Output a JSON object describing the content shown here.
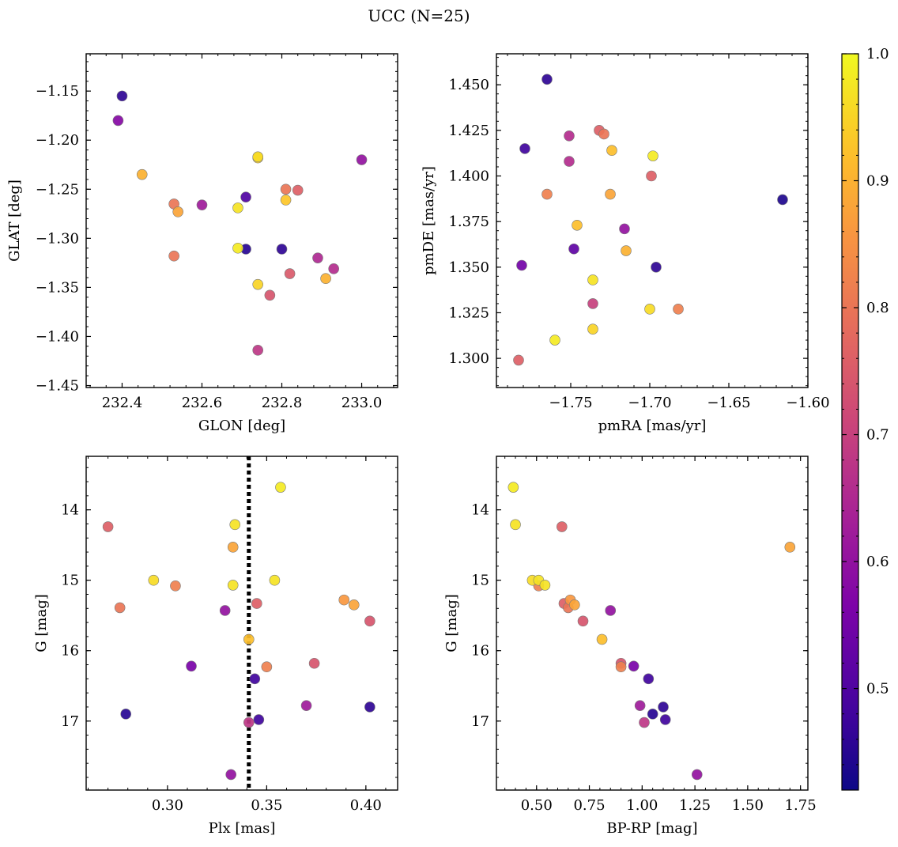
{
  "title": "UCC (N=25)",
  "colorbar": {
    "colormap": "plasma",
    "range": [
      0.42,
      1.0
    ],
    "ticks": [
      "0.5",
      "0.6",
      "0.7",
      "0.8",
      "0.9",
      "1.0"
    ],
    "tick_values": [
      0.5,
      0.6,
      0.7,
      0.8,
      0.9,
      1.0
    ]
  },
  "chart_data": [
    {
      "type": "scatter",
      "xlabel": "GLON [deg]",
      "ylabel": "GLAT [deg]",
      "xlim": [
        232.31,
        233.09
      ],
      "ylim": [
        -1.452,
        -1.112
      ],
      "xticks": [
        232.4,
        232.6,
        232.8,
        233.0
      ],
      "xticklabels": [
        "232.4",
        "232.6",
        "232.8",
        "233.0"
      ],
      "yticks": [
        -1.15,
        -1.2,
        -1.25,
        -1.3,
        -1.35,
        -1.4,
        -1.45
      ],
      "yticklabels": [
        "−1.15",
        "−1.20",
        "−1.25",
        "−1.30",
        "−1.35",
        "−1.40",
        "−1.45"
      ],
      "points": [
        {
          "x": 232.4,
          "y": -1.155,
          "c": 0.46
        },
        {
          "x": 232.39,
          "y": -1.18,
          "c": 0.58
        },
        {
          "x": 232.45,
          "y": -1.235,
          "c": 0.9
        },
        {
          "x": 232.53,
          "y": -1.265,
          "c": 0.8
        },
        {
          "x": 232.54,
          "y": -1.273,
          "c": 0.88
        },
        {
          "x": 232.53,
          "y": -1.318,
          "c": 0.8
        },
        {
          "x": 232.6,
          "y": -1.266,
          "c": 0.62
        },
        {
          "x": 232.69,
          "y": -1.269,
          "c": 0.97
        },
        {
          "x": 232.69,
          "y": -1.31,
          "c": 0.98
        },
        {
          "x": 232.71,
          "y": -1.258,
          "c": 0.5
        },
        {
          "x": 232.71,
          "y": -1.311,
          "c": 0.45
        },
        {
          "x": 232.74,
          "y": -1.217,
          "c": 0.96
        },
        {
          "x": 232.74,
          "y": -1.218,
          "c": 0.94
        },
        {
          "x": 232.74,
          "y": -1.347,
          "c": 0.95
        },
        {
          "x": 232.74,
          "y": -1.414,
          "c": 0.68
        },
        {
          "x": 232.77,
          "y": -1.358,
          "c": 0.74
        },
        {
          "x": 232.8,
          "y": -1.311,
          "c": 0.46
        },
        {
          "x": 232.81,
          "y": -1.25,
          "c": 0.8
        },
        {
          "x": 232.81,
          "y": -1.261,
          "c": 0.93
        },
        {
          "x": 232.82,
          "y": -1.336,
          "c": 0.75
        },
        {
          "x": 232.84,
          "y": -1.251,
          "c": 0.76
        },
        {
          "x": 232.89,
          "y": -1.32,
          "c": 0.65
        },
        {
          "x": 232.91,
          "y": -1.341,
          "c": 0.9
        },
        {
          "x": 232.93,
          "y": -1.331,
          "c": 0.66
        },
        {
          "x": 233.0,
          "y": -1.22,
          "c": 0.6
        }
      ]
    },
    {
      "type": "scatter",
      "xlabel": "pmRA [mas/yr]",
      "ylabel": "pmDE [mas/yr]",
      "xlim": [
        -1.797,
        -1.6
      ],
      "ylim": [
        1.284,
        1.467
      ],
      "xticks": [
        -1.75,
        -1.7,
        -1.65,
        -1.6
      ],
      "xticklabels": [
        "−1.75",
        "−1.70",
        "−1.65",
        "−1.60"
      ],
      "yticks": [
        1.3,
        1.325,
        1.35,
        1.375,
        1.4,
        1.425,
        1.45
      ],
      "yticklabels": [
        "1.300",
        "1.325",
        "1.350",
        "1.375",
        "1.400",
        "1.425",
        "1.450"
      ],
      "points": [
        {
          "x": -1.765,
          "y": 1.453,
          "c": 0.46
        },
        {
          "x": -1.779,
          "y": 1.415,
          "c": 0.48
        },
        {
          "x": -1.781,
          "y": 1.351,
          "c": 0.55
        },
        {
          "x": -1.783,
          "y": 1.299,
          "c": 0.76
        },
        {
          "x": -1.765,
          "y": 1.39,
          "c": 0.82
        },
        {
          "x": -1.76,
          "y": 1.31,
          "c": 0.98
        },
        {
          "x": -1.751,
          "y": 1.422,
          "c": 0.66
        },
        {
          "x": -1.751,
          "y": 1.408,
          "c": 0.66
        },
        {
          "x": -1.748,
          "y": 1.36,
          "c": 0.52
        },
        {
          "x": -1.746,
          "y": 1.373,
          "c": 0.92
        },
        {
          "x": -1.736,
          "y": 1.343,
          "c": 0.97
        },
        {
          "x": -1.736,
          "y": 1.33,
          "c": 0.7
        },
        {
          "x": -1.736,
          "y": 1.316,
          "c": 0.95
        },
        {
          "x": -1.732,
          "y": 1.425,
          "c": 0.76
        },
        {
          "x": -1.729,
          "y": 1.423,
          "c": 0.8
        },
        {
          "x": -1.724,
          "y": 1.414,
          "c": 0.92
        },
        {
          "x": -1.725,
          "y": 1.39,
          "c": 0.88
        },
        {
          "x": -1.716,
          "y": 1.371,
          "c": 0.6
        },
        {
          "x": -1.715,
          "y": 1.359,
          "c": 0.9
        },
        {
          "x": -1.698,
          "y": 1.411,
          "c": 0.98
        },
        {
          "x": -1.699,
          "y": 1.4,
          "c": 0.76
        },
        {
          "x": -1.696,
          "y": 1.35,
          "c": 0.46
        },
        {
          "x": -1.7,
          "y": 1.327,
          "c": 0.96
        },
        {
          "x": -1.682,
          "y": 1.327,
          "c": 0.82
        },
        {
          "x": -1.616,
          "y": 1.387,
          "c": 0.44
        }
      ]
    },
    {
      "type": "scatter",
      "xlabel": "Plx [mas]",
      "ylabel": "G [mag]",
      "xlim": [
        0.259,
        0.416
      ],
      "ylim": [
        17.98,
        13.24
      ],
      "xticks": [
        0.3,
        0.35,
        0.4
      ],
      "xticklabels": [
        "0.30",
        "0.35",
        "0.40"
      ],
      "yticks": [
        14,
        15,
        16,
        17
      ],
      "yticklabels": [
        "14",
        "15",
        "16",
        "17"
      ],
      "vline": 0.341,
      "points": [
        {
          "x": 0.357,
          "y": 13.68,
          "c": 0.98
        },
        {
          "x": 0.27,
          "y": 14.24,
          "c": 0.76
        },
        {
          "x": 0.334,
          "y": 14.21,
          "c": 0.97
        },
        {
          "x": 0.333,
          "y": 14.53,
          "c": 0.88
        },
        {
          "x": 0.293,
          "y": 15.0,
          "c": 0.96
        },
        {
          "x": 0.304,
          "y": 15.08,
          "c": 0.82
        },
        {
          "x": 0.333,
          "y": 15.07,
          "c": 0.97
        },
        {
          "x": 0.354,
          "y": 15.0,
          "c": 0.97
        },
        {
          "x": 0.276,
          "y": 15.39,
          "c": 0.8
        },
        {
          "x": 0.329,
          "y": 15.43,
          "c": 0.6
        },
        {
          "x": 0.345,
          "y": 15.33,
          "c": 0.76
        },
        {
          "x": 0.389,
          "y": 15.28,
          "c": 0.86
        },
        {
          "x": 0.394,
          "y": 15.35,
          "c": 0.88
        },
        {
          "x": 0.402,
          "y": 15.58,
          "c": 0.74
        },
        {
          "x": 0.341,
          "y": 15.84,
          "c": 0.92
        },
        {
          "x": 0.312,
          "y": 16.22,
          "c": 0.56
        },
        {
          "x": 0.35,
          "y": 16.23,
          "c": 0.82
        },
        {
          "x": 0.374,
          "y": 16.18,
          "c": 0.74
        },
        {
          "x": 0.344,
          "y": 16.4,
          "c": 0.48
        },
        {
          "x": 0.279,
          "y": 16.9,
          "c": 0.45
        },
        {
          "x": 0.37,
          "y": 16.78,
          "c": 0.62
        },
        {
          "x": 0.402,
          "y": 16.8,
          "c": 0.46
        },
        {
          "x": 0.346,
          "y": 16.98,
          "c": 0.48
        },
        {
          "x": 0.341,
          "y": 17.02,
          "c": 0.68
        },
        {
          "x": 0.332,
          "y": 17.76,
          "c": 0.6
        }
      ]
    },
    {
      "type": "scatter",
      "xlabel": "BP-RP [mag]",
      "ylabel": "G [mag]",
      "xlim": [
        0.31,
        1.785
      ],
      "ylim": [
        17.98,
        13.24
      ],
      "xticks": [
        0.5,
        0.75,
        1.0,
        1.25,
        1.5,
        1.75
      ],
      "xticklabels": [
        "0.50",
        "0.75",
        "1.00",
        "1.25",
        "1.50",
        "1.75"
      ],
      "yticks": [
        14,
        15,
        16,
        17
      ],
      "yticklabels": [
        "14",
        "15",
        "16",
        "17"
      ],
      "points": [
        {
          "x": 0.39,
          "y": 13.68,
          "c": 0.98
        },
        {
          "x": 0.4,
          "y": 14.21,
          "c": 0.97
        },
        {
          "x": 0.62,
          "y": 14.24,
          "c": 0.76
        },
        {
          "x": 1.7,
          "y": 14.53,
          "c": 0.88
        },
        {
          "x": 0.48,
          "y": 15.0,
          "c": 0.96
        },
        {
          "x": 0.51,
          "y": 15.0,
          "c": 0.97
        },
        {
          "x": 0.51,
          "y": 15.08,
          "c": 0.82
        },
        {
          "x": 0.54,
          "y": 15.07,
          "c": 0.97
        },
        {
          "x": 0.63,
          "y": 15.33,
          "c": 0.76
        },
        {
          "x": 0.66,
          "y": 15.28,
          "c": 0.86
        },
        {
          "x": 0.65,
          "y": 15.39,
          "c": 0.8
        },
        {
          "x": 0.68,
          "y": 15.35,
          "c": 0.88
        },
        {
          "x": 0.72,
          "y": 15.58,
          "c": 0.74
        },
        {
          "x": 0.85,
          "y": 15.43,
          "c": 0.6
        },
        {
          "x": 0.81,
          "y": 15.84,
          "c": 0.92
        },
        {
          "x": 0.9,
          "y": 16.18,
          "c": 0.74
        },
        {
          "x": 0.9,
          "y": 16.23,
          "c": 0.82
        },
        {
          "x": 0.96,
          "y": 16.22,
          "c": 0.56
        },
        {
          "x": 1.03,
          "y": 16.4,
          "c": 0.48
        },
        {
          "x": 0.99,
          "y": 16.78,
          "c": 0.62
        },
        {
          "x": 1.1,
          "y": 16.8,
          "c": 0.46
        },
        {
          "x": 1.05,
          "y": 16.9,
          "c": 0.45
        },
        {
          "x": 1.11,
          "y": 16.98,
          "c": 0.48
        },
        {
          "x": 1.01,
          "y": 17.02,
          "c": 0.68
        },
        {
          "x": 1.26,
          "y": 17.76,
          "c": 0.6
        }
      ]
    }
  ]
}
